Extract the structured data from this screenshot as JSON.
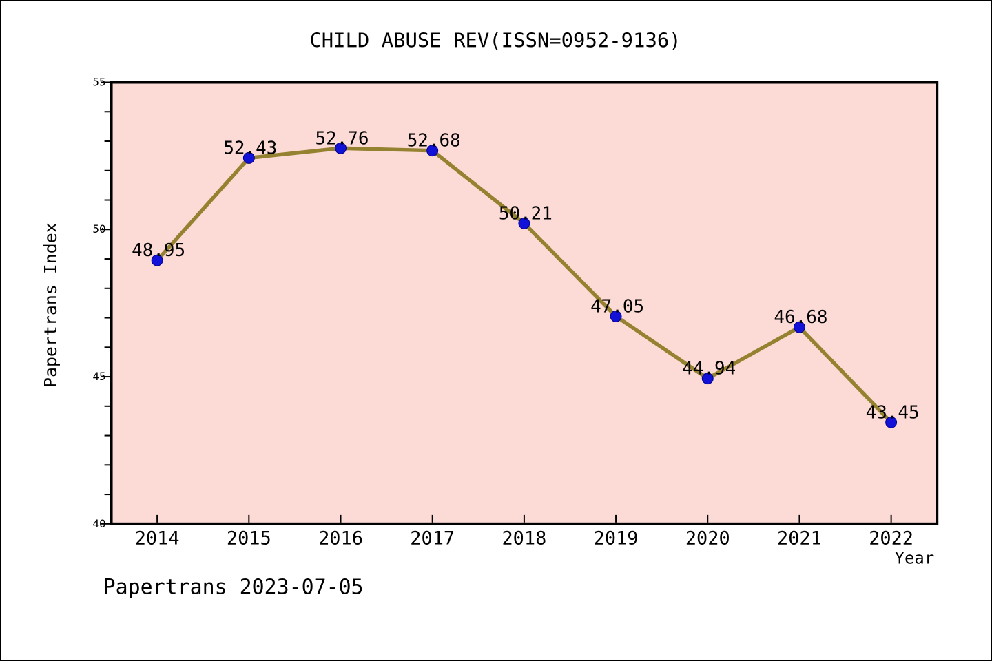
{
  "chart_data": {
    "type": "line",
    "title": "CHILD ABUSE REV(ISSN=0952-9136)",
    "xlabel": "Year",
    "ylabel": "Papertrans Index",
    "footer": "Papertrans 2023-07-05",
    "x": [
      2014,
      2015,
      2016,
      2017,
      2018,
      2019,
      2020,
      2021,
      2022
    ],
    "values": [
      48.95,
      52.43,
      52.76,
      52.68,
      50.21,
      47.05,
      44.94,
      46.68,
      43.45
    ],
    "point_labels": [
      "48.95",
      "52.43",
      "52.76",
      "52.68",
      "50.21",
      "47.05",
      "44.94",
      "46.68",
      "43.45"
    ],
    "xtick_labels": [
      "2014",
      "2015",
      "2016",
      "2017",
      "2018",
      "2019",
      "2020",
      "2021",
      "2022"
    ],
    "xlim": [
      2013.5,
      2022.5
    ],
    "ylim": [
      40,
      55
    ],
    "yticks_major": [
      40,
      45,
      50,
      55
    ],
    "ytick_labels": [
      "40",
      "45",
      "50",
      "55"
    ],
    "yticks_minor_step": 1,
    "grid": false,
    "legend": null,
    "colors": {
      "page_bg": "#ffffff",
      "plot_bg": "#fcdad5",
      "line": "#958231",
      "marker": "#1111d8",
      "marker_edge": "#00008a",
      "axis": "#000000",
      "text": "#000000"
    }
  }
}
